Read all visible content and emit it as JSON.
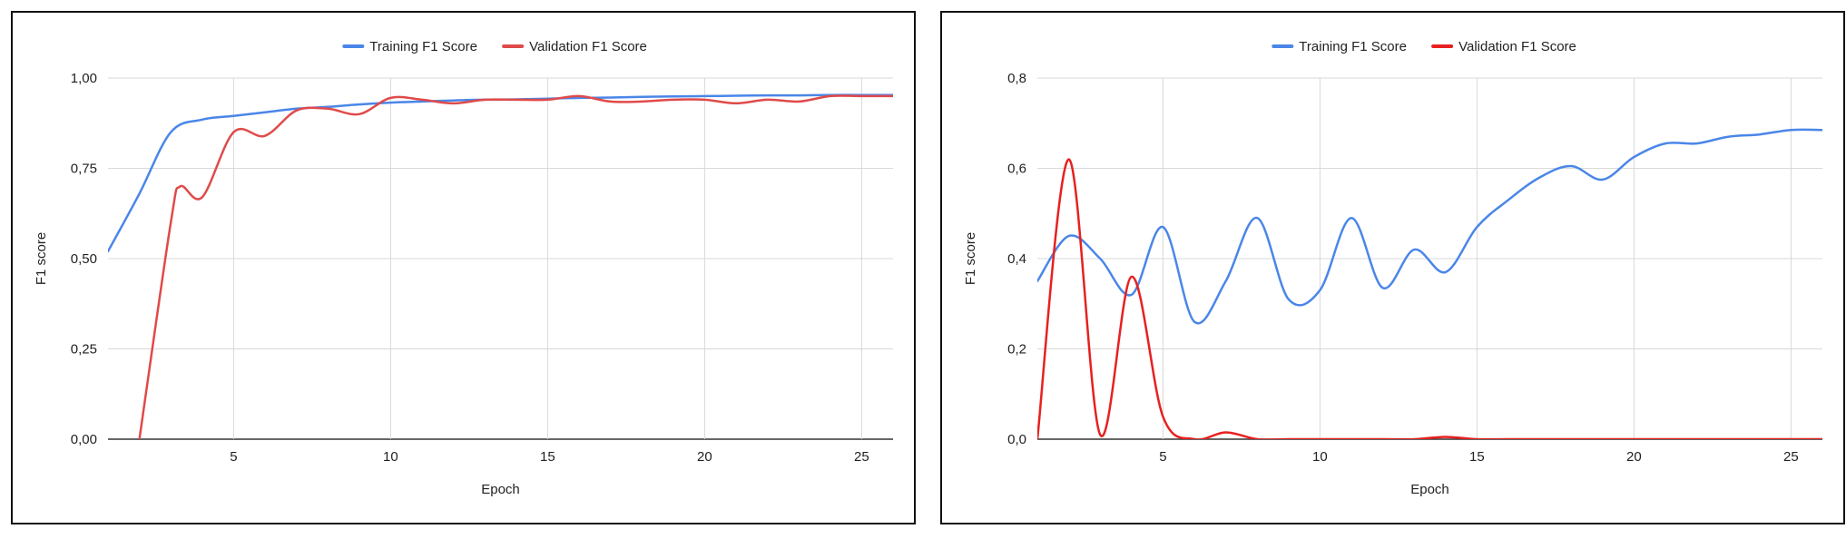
{
  "chart_data": [
    {
      "type": "line",
      "title": "",
      "xlabel": "Epoch",
      "ylabel": "F1 score",
      "xlim": [
        1,
        26
      ],
      "ylim": [
        0,
        1
      ],
      "x_ticks": [
        5,
        10,
        15,
        20,
        25
      ],
      "x_tick_labels": [
        "5",
        "10",
        "15",
        "20",
        "25"
      ],
      "y_ticks": [
        0,
        0.25,
        0.5,
        0.75,
        1.0
      ],
      "y_tick_labels": [
        "0,00",
        "0,25",
        "0,50",
        "0,75",
        "1,00"
      ],
      "grid": true,
      "legend_position": "top",
      "series": [
        {
          "name": "Training F1 Score",
          "color": "#4a86e8",
          "x": [
            1,
            2,
            3,
            4,
            5,
            6,
            7,
            8,
            9,
            10,
            11,
            12,
            13,
            14,
            15,
            16,
            17,
            18,
            19,
            20,
            21,
            22,
            23,
            24,
            25,
            26
          ],
          "values": [
            0.52,
            0.68,
            0.85,
            0.885,
            0.895,
            0.905,
            0.915,
            0.92,
            0.927,
            0.932,
            0.935,
            0.938,
            0.94,
            0.941,
            0.943,
            0.945,
            0.946,
            0.948,
            0.949,
            0.95,
            0.951,
            0.952,
            0.952,
            0.953,
            0.953,
            0.953
          ]
        },
        {
          "name": "Validation F1 Score",
          "color": "#e04a4a",
          "x": [
            2,
            3,
            3.3,
            4,
            5,
            6,
            7,
            8,
            9,
            10,
            11,
            12,
            13,
            14,
            15,
            16,
            17,
            18,
            19,
            20,
            21,
            22,
            23,
            24,
            25,
            26
          ],
          "values": [
            0.0,
            0.6,
            0.7,
            0.67,
            0.85,
            0.84,
            0.91,
            0.915,
            0.9,
            0.945,
            0.94,
            0.93,
            0.94,
            0.94,
            0.94,
            0.95,
            0.935,
            0.935,
            0.94,
            0.94,
            0.93,
            0.94,
            0.935,
            0.95,
            0.95,
            0.95
          ]
        }
      ]
    },
    {
      "type": "line",
      "title": "",
      "xlabel": "Epoch",
      "ylabel": "F1 score",
      "xlim": [
        1,
        26
      ],
      "ylim": [
        0,
        0.8
      ],
      "x_ticks": [
        5,
        10,
        15,
        20,
        25
      ],
      "x_tick_labels": [
        "5",
        "10",
        "15",
        "20",
        "25"
      ],
      "y_ticks": [
        0,
        0.2,
        0.4,
        0.6,
        0.8
      ],
      "y_tick_labels": [
        "0,0",
        "0,2",
        "0,4",
        "0,6",
        "0,8"
      ],
      "grid": true,
      "legend_position": "top",
      "series": [
        {
          "name": "Training F1 Score",
          "color": "#4a86e8",
          "x": [
            1,
            2,
            3,
            4,
            5,
            6,
            7,
            8,
            9,
            10,
            11,
            12,
            13,
            14,
            15,
            16,
            17,
            18,
            19,
            20,
            21,
            22,
            23,
            24,
            25,
            26
          ],
          "values": [
            0.35,
            0.45,
            0.4,
            0.32,
            0.47,
            0.26,
            0.35,
            0.49,
            0.31,
            0.33,
            0.49,
            0.335,
            0.42,
            0.37,
            0.47,
            0.53,
            0.58,
            0.605,
            0.575,
            0.625,
            0.655,
            0.655,
            0.67,
            0.675,
            0.685,
            0.685
          ]
        },
        {
          "name": "Validation F1 Score",
          "color": "#e82020",
          "x": [
            1,
            2,
            3,
            4,
            5,
            6,
            7,
            8,
            9,
            10,
            11,
            12,
            13,
            14,
            15,
            16,
            17,
            18,
            19,
            20,
            21,
            22,
            23,
            24,
            25,
            26
          ],
          "values": [
            0.0,
            0.62,
            0.01,
            0.36,
            0.05,
            0.0,
            0.015,
            0.0,
            0.0,
            0.0,
            0.0,
            0.0,
            0.0,
            0.005,
            0.0,
            0.0,
            0.0,
            0.0,
            0.0,
            0.0,
            0.0,
            0.0,
            0.0,
            0.0,
            0.0,
            0.0
          ]
        }
      ]
    }
  ]
}
